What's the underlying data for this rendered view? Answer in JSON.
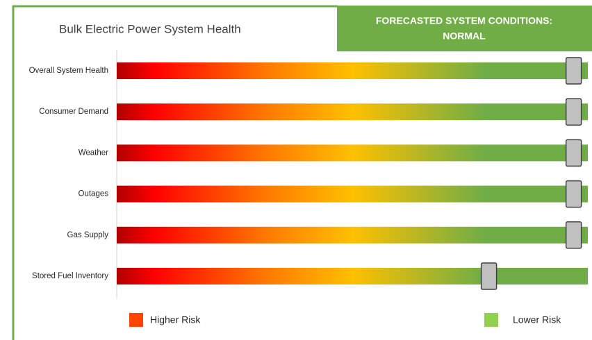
{
  "chart_data": {
    "type": "slider",
    "title": "Bulk Electric Power System Health",
    "status": [
      "FORECASTED SYSTEM CONDITIONS:",
      "NORMAL"
    ],
    "categories": [
      "Overall System Health",
      "Consumer Demand",
      "Weather",
      "Outages",
      "Gas Supply",
      "Stored Fuel Inventory"
    ],
    "values": [
      97,
      97,
      97,
      97,
      97,
      79
    ],
    "xlim": [
      0,
      100
    ],
    "marker_color": "#c0c0c0",
    "legend": [
      {
        "name": "Higher Risk",
        "color": "#ff4500"
      },
      {
        "name": "Lower Risk",
        "color": "#92d050"
      }
    ]
  }
}
